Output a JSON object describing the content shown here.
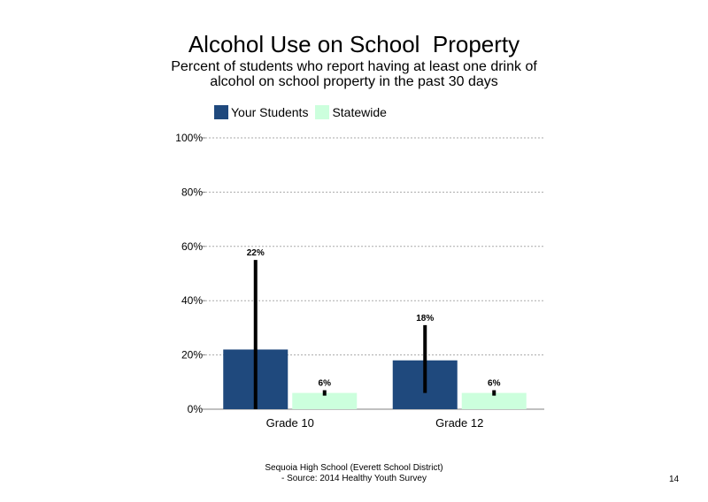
{
  "slide": {
    "title": "Alcohol Use on School  Property",
    "subtitle": "Percent of students who report having at least one drink of alcohol on school property in the past 30 days",
    "footer_line1": "Sequoia High School (Everett School District)",
    "footer_line2": "- Source: 2014 Healthy  Youth Survey",
    "page_number": "14"
  },
  "chart_data": {
    "type": "bar",
    "categories": [
      "Grade 10",
      "Grade 12"
    ],
    "series": [
      {
        "name": "Your Students",
        "values": [
          22,
          18
        ],
        "error_low": [
          0,
          6
        ],
        "error_high": [
          55,
          31
        ],
        "labels": [
          "22%",
          "18%"
        ],
        "color": "#1f497d"
      },
      {
        "name": "Statewide",
        "values": [
          6,
          6
        ],
        "error_low": [
          5,
          5
        ],
        "error_high": [
          7,
          7
        ],
        "labels": [
          "6%",
          "6%"
        ],
        "color": "#ccffdd"
      }
    ],
    "ylim": [
      0,
      100
    ],
    "yticks": [
      "0%",
      "20%",
      "40%",
      "60%",
      "80%",
      "100%"
    ],
    "grid": true,
    "legend_position": "top-left"
  }
}
